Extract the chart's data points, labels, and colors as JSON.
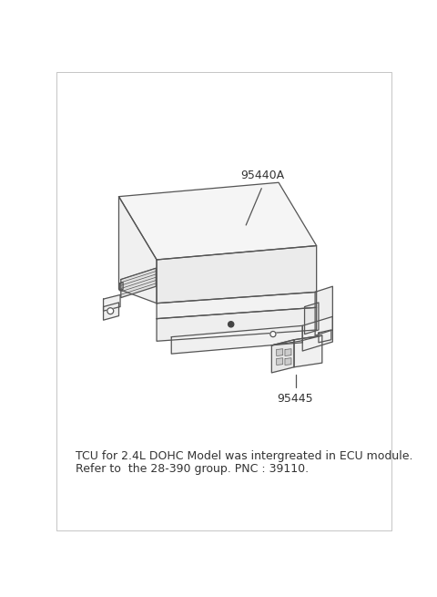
{
  "bg_color": "#ffffff",
  "line_color": "#555555",
  "text_color": "#333333",
  "label_95440A": "95440A",
  "label_95445": "95445",
  "note_line1": "TCU for 2.4L DOHC Model was intergreated in ECU module.",
  "note_line2": "Refer to  the 28-390 group. PNC : 39110.",
  "note_fontsize": 9.0,
  "label_fontsize": 9.0,
  "lw": 0.9
}
